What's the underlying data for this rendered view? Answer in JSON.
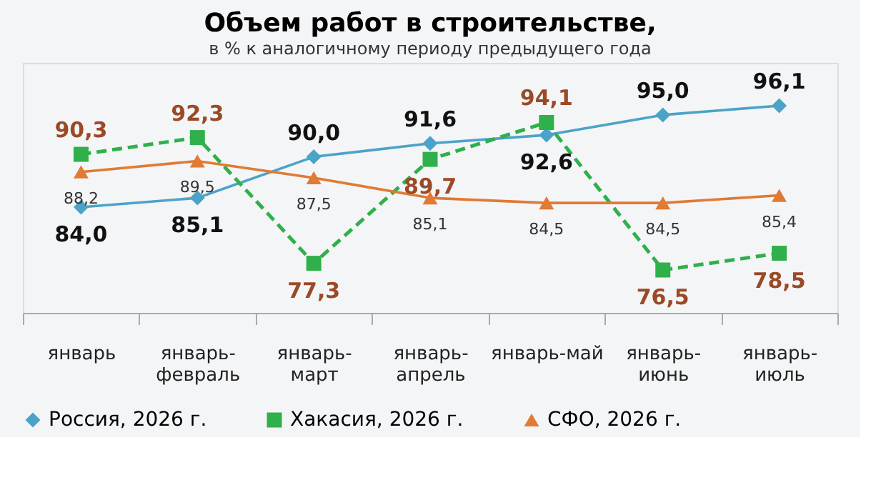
{
  "chart_data": {
    "type": "line",
    "title": "Объем работ в строительстве,",
    "subtitle": "в % к аналогичному периоду предыдущего года",
    "categories": [
      "январь",
      "январь-февраль",
      "январь-март",
      "январь-апрель",
      "январь-май",
      "январь-июнь",
      "январь-июль"
    ],
    "series": [
      {
        "name": "Россия, 2026 г.",
        "color": "#4ba3c7",
        "marker": "diamond",
        "line_style": "solid",
        "values": [
          84.0,
          85.1,
          90.0,
          91.6,
          92.6,
          95.0,
          96.1
        ],
        "value_labels": [
          "84,0",
          "85,1",
          "90,0",
          "91,6",
          "92,6",
          "95,0",
          "96,1"
        ]
      },
      {
        "name": "Хакасия, 2026 г.",
        "color": "#2fb04a",
        "marker": "square",
        "line_style": "dashed",
        "values": [
          90.3,
          92.3,
          77.3,
          89.7,
          94.1,
          76.5,
          78.5
        ],
        "value_labels": [
          "90,3",
          "92,3",
          "77,3",
          "89,7",
          "94,1",
          "76,5",
          "78,5"
        ]
      },
      {
        "name": "СФО, 2026 г.",
        "color": "#e07a34",
        "marker": "triangle",
        "line_style": "solid",
        "values": [
          88.2,
          89.5,
          87.5,
          85.1,
          84.5,
          84.5,
          85.4
        ],
        "value_labels": [
          "88,2",
          "89,5",
          "87,5",
          "85,1",
          "84,5",
          "84,5",
          "85,4"
        ]
      }
    ],
    "legend": "bottom",
    "grid": false,
    "tick_labels": "x"
  }
}
